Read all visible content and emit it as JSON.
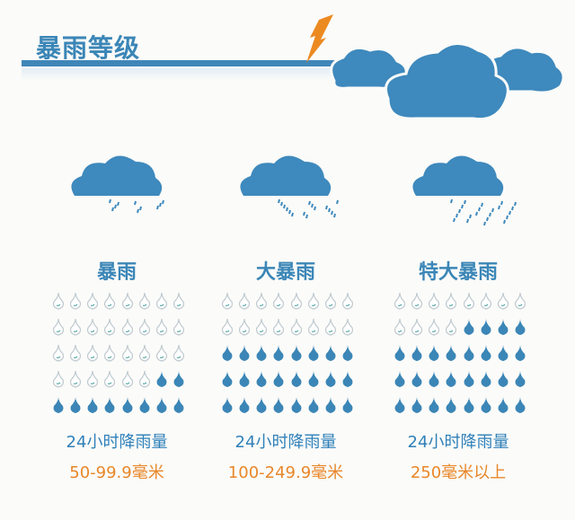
{
  "title": "暴雨等级",
  "colors": {
    "blue": "#3b86b7",
    "orange": "#e8872a",
    "drop_empty": "#bfc9cf"
  },
  "icons": [
    "lightning-icon",
    "cloud-icon",
    "rain-cloud-icon",
    "raindrop-icon"
  ],
  "levels": [
    {
      "name": "暴雨",
      "label": "24小时降雨量",
      "amount": "50-99.9毫米",
      "filled_drops": 10,
      "total_drops": 40
    },
    {
      "name": "大暴雨",
      "label": "24小时降雨量",
      "amount": "100-249.9毫米",
      "filled_drops": 24,
      "total_drops": 40
    },
    {
      "name": "特大暴雨",
      "label": "24小时降雨量",
      "amount": "250毫米以上",
      "filled_drops": 28,
      "total_drops": 40
    }
  ]
}
